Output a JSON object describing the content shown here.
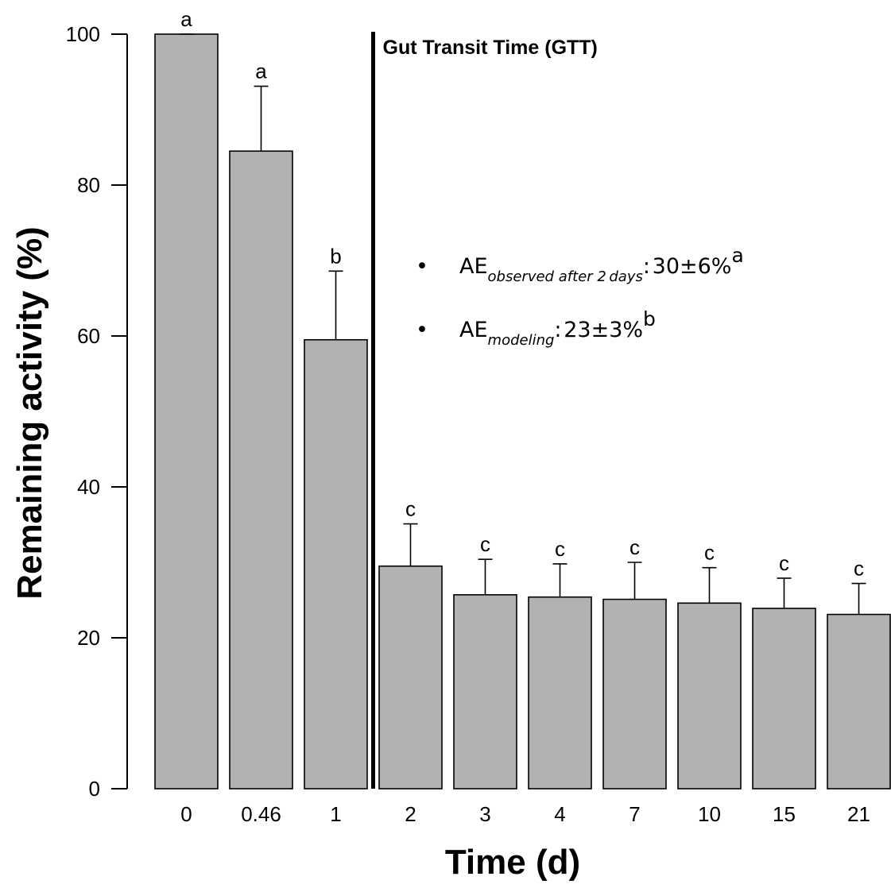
{
  "chart_data": {
    "type": "bar",
    "categories": [
      "0",
      "0.46",
      "1",
      "2",
      "3",
      "4",
      "7",
      "10",
      "15",
      "21"
    ],
    "values": [
      100,
      84.5,
      59.5,
      29.5,
      25.7,
      25.4,
      25.1,
      24.6,
      23.9,
      23.1
    ],
    "error_upper": [
      100,
      93.1,
      68.6,
      35.1,
      30.4,
      29.8,
      30.0,
      29.3,
      27.9,
      27.2
    ],
    "significance_letters": [
      "a",
      "a",
      "b",
      "c",
      "c",
      "c",
      "c",
      "c",
      "c",
      "c"
    ],
    "bar_color": "#b2b2b2",
    "xlabel": "Time (d)",
    "ylabel": "Remaining activity (%)",
    "ylim": [
      0,
      100
    ],
    "yticks": [
      "0",
      "20",
      "40",
      "60",
      "80",
      "100"
    ],
    "grid": false,
    "annotation": {
      "label": "Gut Transit Time (GTT)",
      "between_categories": [
        "1",
        "2"
      ]
    },
    "notes": [
      {
        "bullet": "•",
        "main": "AE",
        "sub": "observed after 2 days",
        "sep": ": ",
        "value": "30±6%",
        "sup": "a"
      },
      {
        "bullet": "•",
        "main": "AE",
        "sub": "modeling",
        "sep": ": ",
        "value": "23±3%",
        "sup": "b"
      }
    ]
  }
}
